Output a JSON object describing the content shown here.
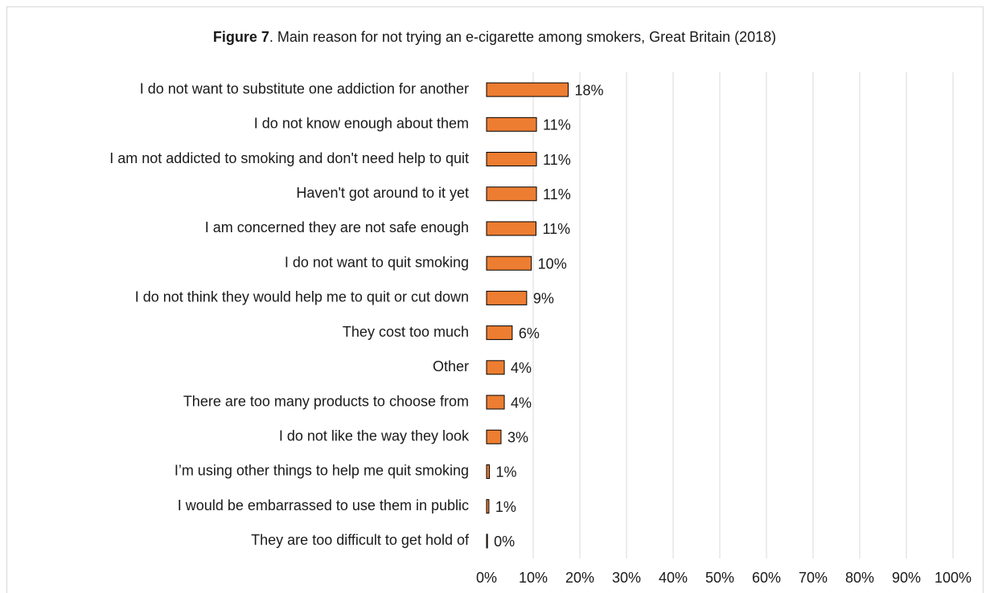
{
  "chart_data": {
    "type": "bar",
    "orientation": "horizontal",
    "title_prefix": "Figure 7",
    "title": ". Main reason for not trying  an e-cigarette among smokers, Great Britain (2018)",
    "categories": [
      "I do not want to substitute one addiction for another",
      "I do not know enough about them",
      "I am not addicted to smoking and don't need help to quit",
      "Haven't got around to it yet",
      "I am concerned they are not safe enough",
      "I do not want to quit smoking",
      "I do not think they would help me to quit or cut down",
      "They cost too much",
      "Other",
      "There are too many products to choose from",
      "I do not like the way they look",
      "I’m using other things to help me quit smoking",
      "I would be embarrassed to use them in public",
      "They are too difficult to get hold of"
    ],
    "values": [
      17.5,
      10.7,
      10.7,
      10.7,
      10.6,
      9.6,
      8.6,
      5.5,
      3.8,
      3.8,
      3.1,
      0.6,
      0.5,
      0.2
    ],
    "value_labels": [
      "18%",
      "11%",
      "11%",
      "11%",
      "11%",
      "10%",
      "9%",
      "6%",
      "4%",
      "4%",
      "3%",
      "1%",
      "1%",
      "0%"
    ],
    "color": "#ed7d31",
    "xlim": [
      0,
      100
    ],
    "xticks": [
      {
        "value": 0,
        "label": "0%"
      },
      {
        "value": 10,
        "label": "10%"
      },
      {
        "value": 20,
        "label": "20%"
      },
      {
        "value": 30,
        "label": "30%"
      },
      {
        "value": 40,
        "label": "40%"
      },
      {
        "value": 50,
        "label": "50%"
      },
      {
        "value": 60,
        "label": "60%"
      },
      {
        "value": 70,
        "label": "70%"
      },
      {
        "value": 80,
        "label": "80%"
      },
      {
        "value": 90,
        "label": "90%"
      },
      {
        "value": 100,
        "label": "100%"
      }
    ],
    "grid": true
  }
}
